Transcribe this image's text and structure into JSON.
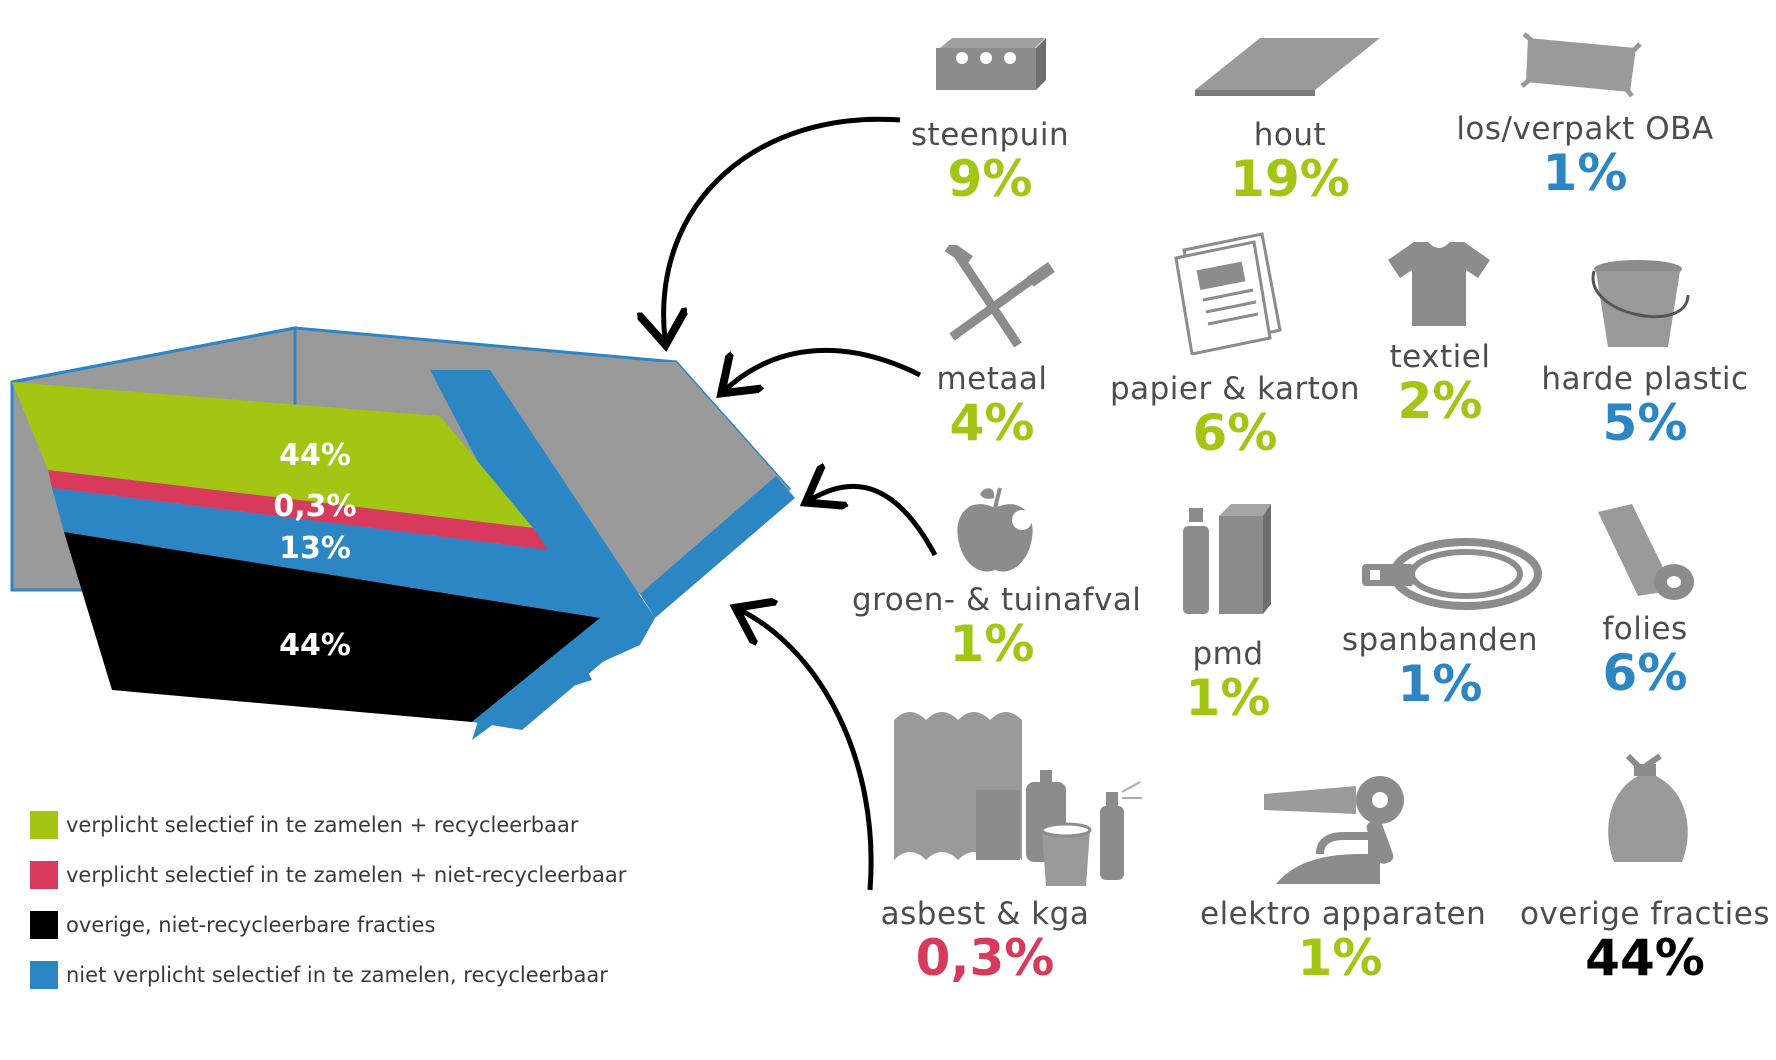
{
  "colors": {
    "recyclable_mandatory": "#a2c613",
    "non_recyclable_mandatory": "#d83a5c",
    "other_non_recyclable": "#000000",
    "recyclable_optional": "#2d86c4",
    "icon_gray": "#8c8c8c",
    "container_gray": "#9a9a9a"
  },
  "container": {
    "layers": [
      {
        "label": "44%",
        "value": 44,
        "color": "#a2c613"
      },
      {
        "label": "0,3%",
        "value": 0.3,
        "color": "#d83a5c"
      },
      {
        "label": "13%",
        "value": 13,
        "color": "#2d86c4"
      },
      {
        "label": "44%",
        "value": 44,
        "color": "#000000"
      }
    ]
  },
  "categories": [
    {
      "id": "steenpuin",
      "label": "steenpuin",
      "percent": "9%",
      "color": "#a2c613",
      "icon": "brick-icon"
    },
    {
      "id": "hout",
      "label": "hout",
      "percent": "19%",
      "color": "#a2c613",
      "icon": "wood-plank-icon"
    },
    {
      "id": "oba",
      "label": "los/verpakt OBA",
      "percent": "1%",
      "color": "#2d86c4",
      "icon": "bag-icon"
    },
    {
      "id": "metaal",
      "label": "metaal",
      "percent": "4%",
      "color": "#a2c613",
      "icon": "nails-icon"
    },
    {
      "id": "papier",
      "label": "papier & karton",
      "percent": "6%",
      "color": "#a2c613",
      "icon": "newspaper-icon"
    },
    {
      "id": "textiel",
      "label": "textiel",
      "percent": "2%",
      "color": "#a2c613",
      "icon": "tshirt-icon"
    },
    {
      "id": "plastic",
      "label": "harde plastic",
      "percent": "5%",
      "color": "#2d86c4",
      "icon": "bucket-icon"
    },
    {
      "id": "groen",
      "label": "groen- & tuinafval",
      "percent": "1%",
      "color": "#a2c613",
      "icon": "apple-icon"
    },
    {
      "id": "pmd",
      "label": "pmd",
      "percent": "1%",
      "color": "#a2c613",
      "icon": "bottle-carton-icon"
    },
    {
      "id": "spanbanden",
      "label": "spanbanden",
      "percent": "1%",
      "color": "#2d86c4",
      "icon": "strap-icon"
    },
    {
      "id": "folies",
      "label": "folies",
      "percent": "6%",
      "color": "#2d86c4",
      "icon": "foil-roll-icon"
    },
    {
      "id": "asbest",
      "label": "asbest & kga",
      "percent": "0,3%",
      "color": "#d83a5c",
      "icon": "asbestos-chemicals-icon"
    },
    {
      "id": "elektro",
      "label": "elektro apparaten",
      "percent": "1%",
      "color": "#a2c613",
      "icon": "appliances-icon"
    },
    {
      "id": "overige",
      "label": "overige fracties",
      "percent": "44%",
      "color": "#000000",
      "icon": "trash-bag-icon"
    }
  ],
  "legend": [
    {
      "text": "verplicht selectief in te zamelen + recycleerbaar",
      "color": "#a2c613"
    },
    {
      "text": "verplicht selectief in te zamelen + niet-recycleerbaar",
      "color": "#d83a5c"
    },
    {
      "text": "overige, niet-recycleerbare fracties",
      "color": "#000000"
    },
    {
      "text": "niet verplicht selectief in te zamelen, recycleerbaar",
      "color": "#2d86c4"
    }
  ]
}
